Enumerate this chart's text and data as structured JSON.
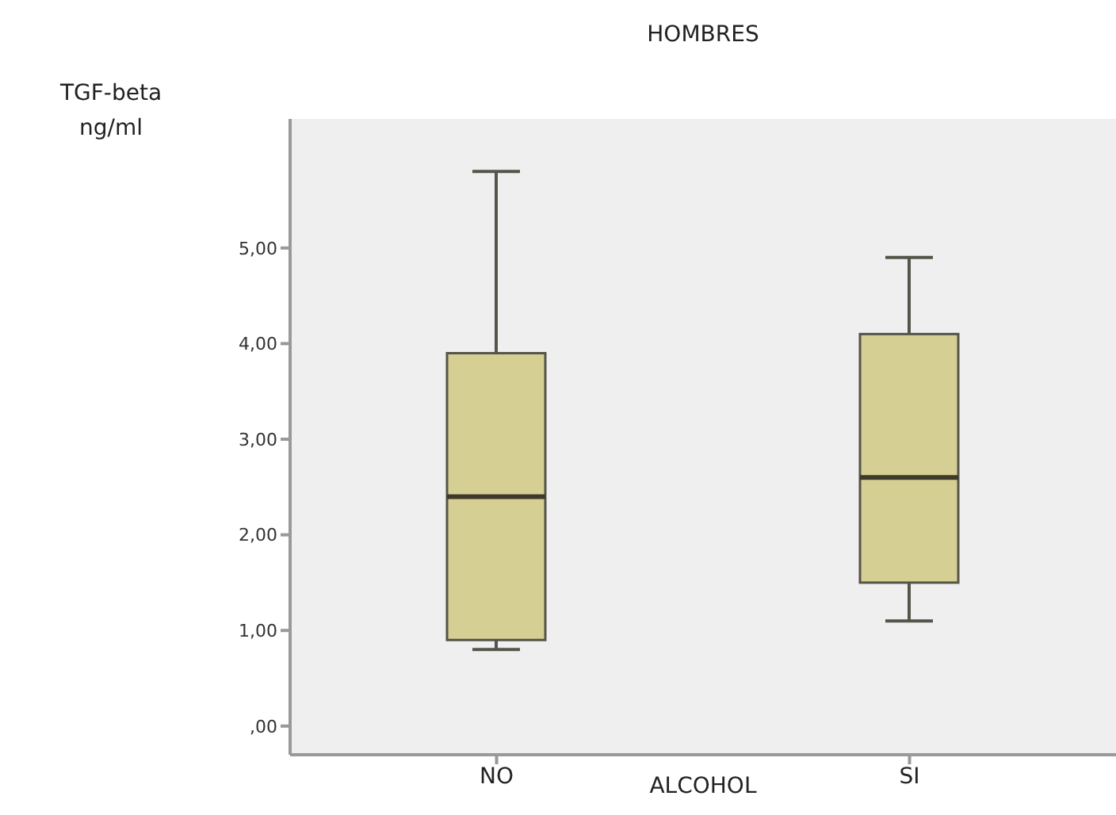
{
  "chart_data": {
    "type": "box",
    "title": "HOMBRES",
    "xlabel": "ALCOHOL",
    "ylabel": "TGF-beta ng/ml",
    "categories": [
      "NO",
      "SI"
    ],
    "color": "#d5cf94",
    "boxes": [
      {
        "low": 0.8,
        "q1": 0.9,
        "median": 2.4,
        "q3": 3.9,
        "high": 5.8
      },
      {
        "low": 1.1,
        "q1": 1.5,
        "median": 2.6,
        "q3": 4.1,
        "high": 4.9
      }
    ],
    "ylim": [
      -0.3,
      6.35
    ],
    "yticks": [
      {
        "value": 0,
        "label": ",00"
      },
      {
        "value": 1,
        "label": "1,00"
      },
      {
        "value": 2,
        "label": "2,00"
      },
      {
        "value": 3,
        "label": "3,00"
      },
      {
        "value": 4,
        "label": "4,00"
      },
      {
        "value": 5,
        "label": "5,00"
      }
    ]
  }
}
